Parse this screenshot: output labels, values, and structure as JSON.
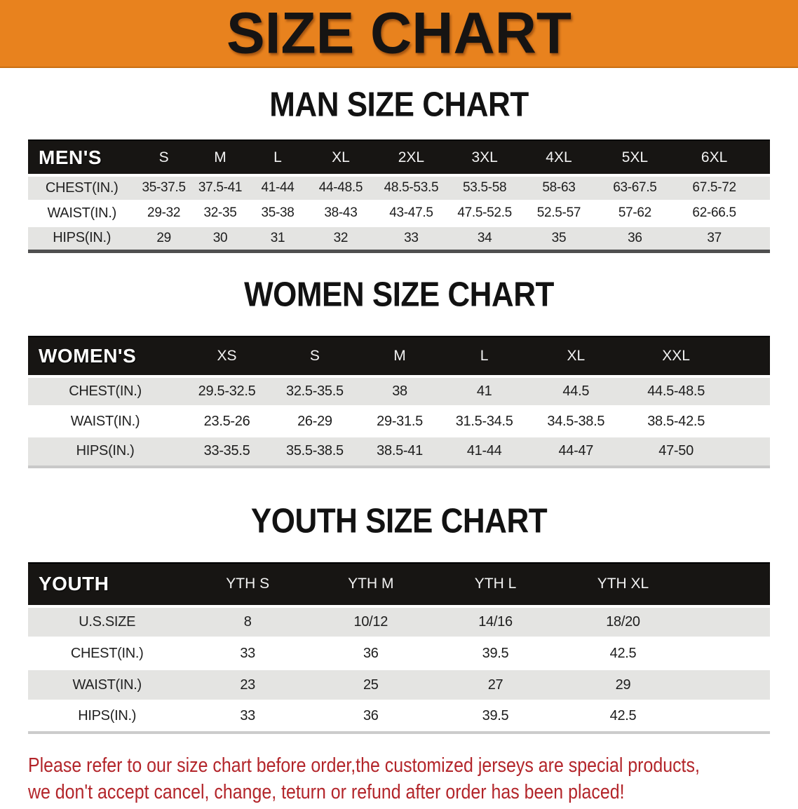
{
  "banner": {
    "title": "SIZE CHART"
  },
  "colors": {
    "banner_bg": "#E8821E",
    "table_header_bg": "#171513",
    "row_alt_gray": "#E4E4E2",
    "note_red": "#B3252A"
  },
  "sections": [
    {
      "id": "men",
      "heading": "MAN SIZE CHART",
      "group_label": "MEN'S",
      "columns": [
        "S",
        "M",
        "L",
        "XL",
        "2XL",
        "3XL",
        "4XL",
        "5XL",
        "6XL"
      ],
      "rows": [
        {
          "label": "CHEST(IN.)",
          "values": [
            "35-37.5",
            "37.5-41",
            "41-44",
            "44-48.5",
            "48.5-53.5",
            "53.5-58",
            "58-63",
            "63-67.5",
            "67.5-72"
          ]
        },
        {
          "label": "WAIST(IN.)",
          "values": [
            "29-32",
            "32-35",
            "35-38",
            "38-43",
            "43-47.5",
            "47.5-52.5",
            "52.5-57",
            "57-62",
            "62-66.5"
          ]
        },
        {
          "label": "HIPS(IN.)",
          "values": [
            "29",
            "30",
            "31",
            "32",
            "33",
            "34",
            "35",
            "36",
            "37"
          ]
        }
      ]
    },
    {
      "id": "women",
      "heading": "WOMEN SIZE CHART",
      "group_label": "WOMEN'S",
      "columns": [
        "XS",
        "S",
        "M",
        "L",
        "XL",
        "XXL"
      ],
      "rows": [
        {
          "label": "CHEST(IN.)",
          "values": [
            "29.5-32.5",
            "32.5-35.5",
            "38",
            "41",
            "44.5",
            "44.5-48.5"
          ]
        },
        {
          "label": "WAIST(IN.)",
          "values": [
            "23.5-26",
            "26-29",
            "29-31.5",
            "31.5-34.5",
            "34.5-38.5",
            "38.5-42.5"
          ]
        },
        {
          "label": "HIPS(IN.)",
          "values": [
            "33-35.5",
            "35.5-38.5",
            "38.5-41",
            "41-44",
            "44-47",
            "47-50"
          ]
        }
      ]
    },
    {
      "id": "youth",
      "heading": "YOUTH SIZE CHART",
      "group_label": "YOUTH",
      "columns": [
        "YTH S",
        "YTH M",
        "YTH L",
        "YTH XL"
      ],
      "rows": [
        {
          "label": "U.S.SIZE",
          "values": [
            "8",
            "10/12",
            "14/16",
            "18/20"
          ]
        },
        {
          "label": "CHEST(IN.)",
          "values": [
            "33",
            "36",
            "39.5",
            "42.5"
          ]
        },
        {
          "label": "WAIST(IN.)",
          "values": [
            "23",
            "25",
            "27",
            "29"
          ]
        },
        {
          "label": "HIPS(IN.)",
          "values": [
            "33",
            "36",
            "39.5",
            "42.5"
          ]
        }
      ]
    }
  ],
  "footnote": {
    "line1": "Please refer to our size chart before order,the customized jerseys are special products,",
    "line2": "we don't accept cancel, change, teturn or refund after order has been placed!"
  }
}
